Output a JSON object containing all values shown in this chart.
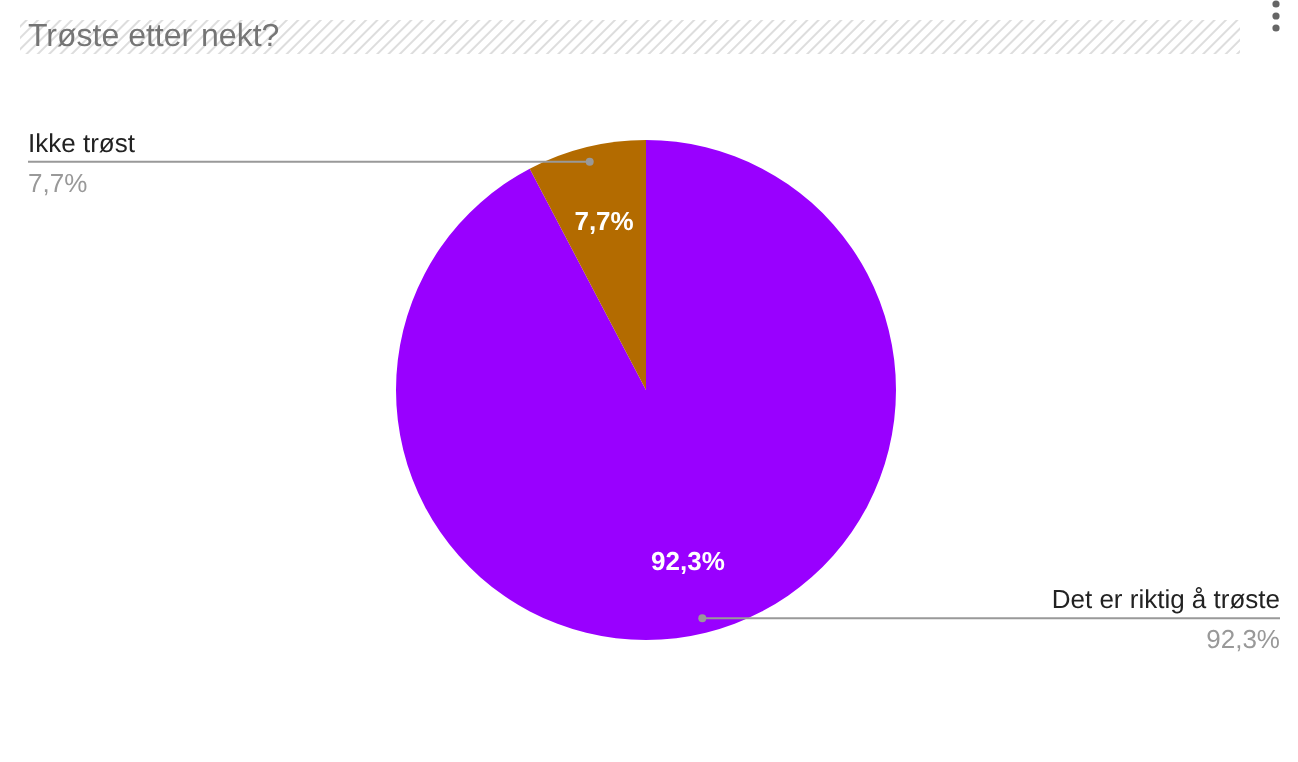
{
  "chart_data": {
    "type": "pie",
    "title": "Trøste etter nekt?",
    "categories": [
      "Det er riktig å trøste",
      "Ikke trøst"
    ],
    "values": [
      92.3,
      7.7
    ],
    "colors": [
      "#9900ff",
      "#b36b00"
    ],
    "value_labels": [
      "92,3%",
      "7,7%"
    ]
  }
}
